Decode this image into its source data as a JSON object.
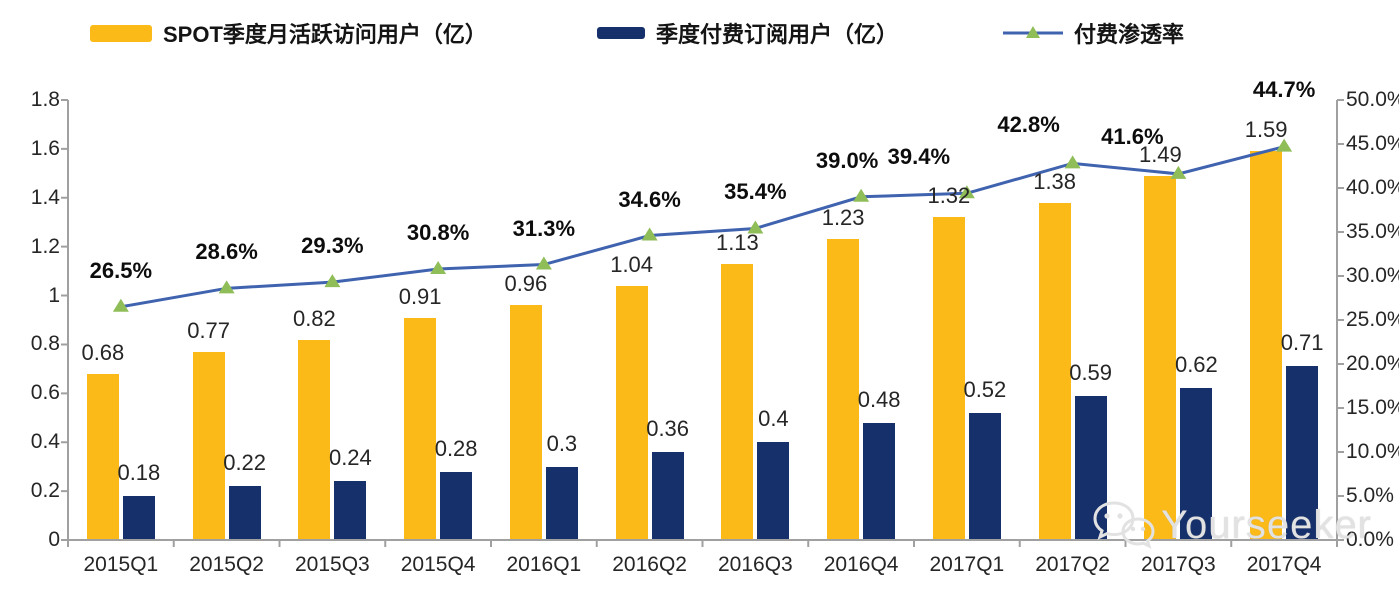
{
  "legend": {
    "items": [
      {
        "label": "SPOT季度月活跃访问用户（亿）",
        "swatch": "bar",
        "color": "#FBBA18"
      },
      {
        "label": "季度付费订阅用户（亿）",
        "swatch": "bar",
        "color": "#16306B"
      },
      {
        "label": "付费渗透率",
        "swatch": "line-triangle",
        "color": "#4063AF",
        "marker_color": "#8FBD58"
      }
    ]
  },
  "watermark": {
    "text": "Yourseeker",
    "icon": "wechat-icon"
  },
  "chart_data": {
    "type": "bar+line",
    "title": "",
    "legend_position": "top",
    "grid": false,
    "categories": [
      "2015Q1",
      "2015Q2",
      "2015Q3",
      "2015Q4",
      "2016Q1",
      "2016Q2",
      "2016Q3",
      "2016Q4",
      "2017Q1",
      "2017Q2",
      "2017Q3",
      "2017Q4"
    ],
    "series": [
      {
        "name": "SPOT季度月活跃访问用户（亿）",
        "type": "bar",
        "axis": "left",
        "color": "#FBBA18",
        "values": [
          0.68,
          0.77,
          0.82,
          0.91,
          0.96,
          1.04,
          1.13,
          1.23,
          1.32,
          1.38,
          1.49,
          1.59
        ],
        "labels": [
          "0.68",
          "0.77",
          "0.82",
          "0.91",
          "0.96",
          "1.04",
          "1.13",
          "1.23",
          "1.32",
          "1.38",
          "1.49",
          "1.59"
        ]
      },
      {
        "name": "季度付费订阅用户（亿）",
        "type": "bar",
        "axis": "left",
        "color": "#16306B",
        "values": [
          0.18,
          0.22,
          0.24,
          0.28,
          0.3,
          0.36,
          0.4,
          0.48,
          0.52,
          0.59,
          0.62,
          0.71
        ],
        "labels": [
          "0.18",
          "0.22",
          "0.24",
          "0.28",
          "0.3",
          "0.36",
          "0.4",
          "0.48",
          "0.52",
          "0.59",
          "0.62",
          "0.71"
        ]
      },
      {
        "name": "付费渗透率",
        "type": "line",
        "axis": "right",
        "color": "#4063AF",
        "marker": "triangle",
        "marker_color": "#8FBD58",
        "values": [
          26.5,
          28.6,
          29.3,
          30.8,
          31.3,
          34.6,
          35.4,
          39.0,
          39.4,
          42.8,
          41.6,
          44.7
        ],
        "labels": [
          "26.5%",
          "28.6%",
          "29.3%",
          "30.8%",
          "31.3%",
          "34.6%",
          "35.4%",
          "39.0%",
          "39.4%",
          "42.8%",
          "41.6%",
          "44.7%"
        ]
      }
    ],
    "left_axis": {
      "min": 0,
      "max": 1.8,
      "step": 0.2,
      "ticks": [
        "1.8",
        "1.6",
        "1.4",
        "1.2",
        "1",
        "0.8",
        "0.6",
        "0.4",
        "0.2",
        "0"
      ]
    },
    "right_axis": {
      "min": 0,
      "max": 50,
      "step": 5,
      "ticks": [
        "50.0%",
        "45.0%",
        "40.0%",
        "35.0%",
        "30.0%",
        "25.0%",
        "20.0%",
        "15.0%",
        "10.0%",
        "5.0%",
        "0.0%"
      ]
    }
  }
}
